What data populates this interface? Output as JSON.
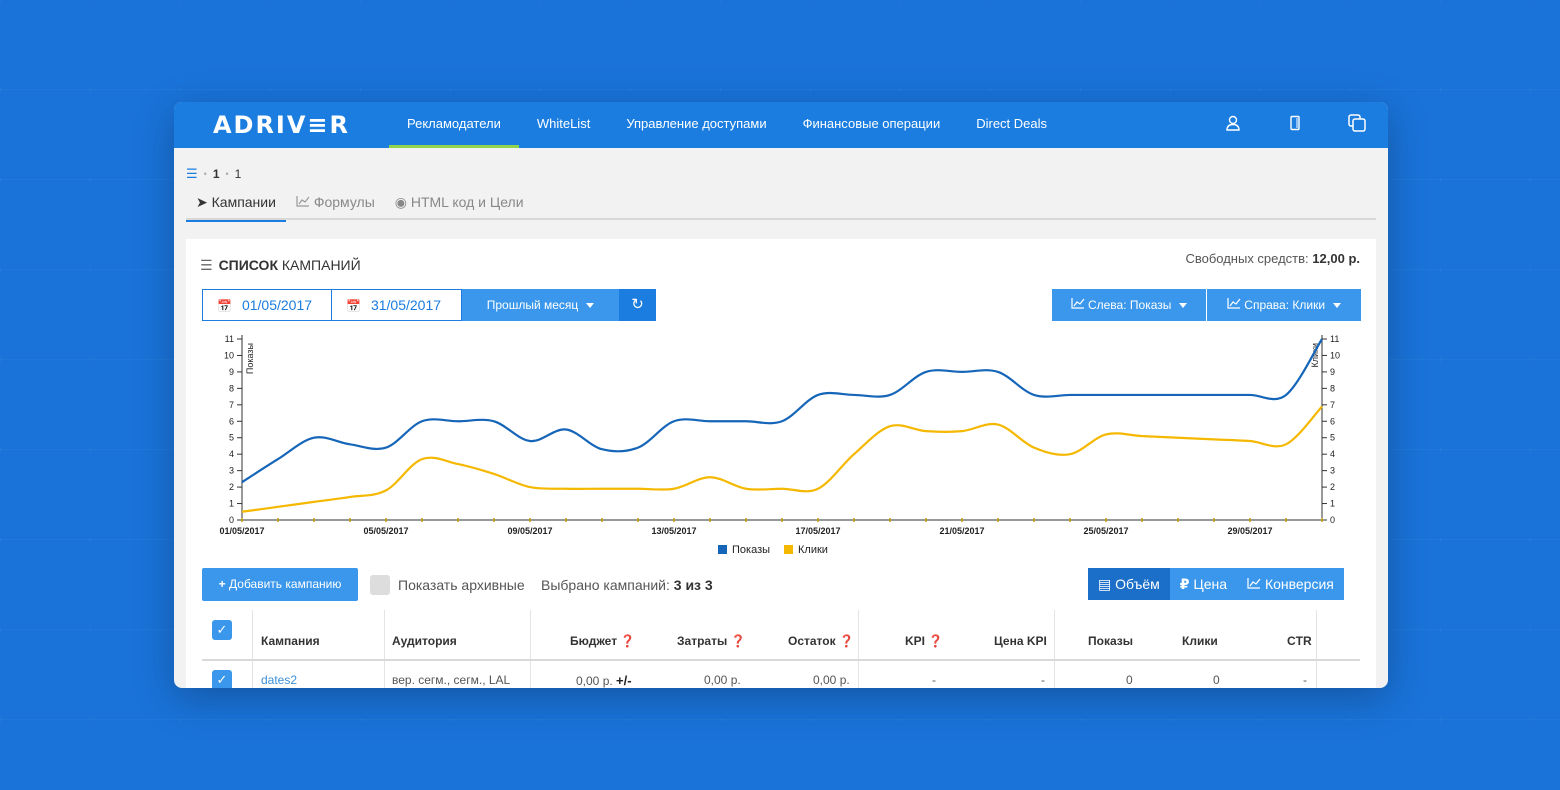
{
  "app": {
    "logo": "ADRIV≡R"
  },
  "nav": {
    "items": [
      "Рекламодатели",
      "WhiteList",
      "Управление доступами",
      "Финансовые операции",
      "Direct Deals"
    ],
    "active": 0,
    "icons": [
      "user-icon",
      "tablet-icon",
      "copy-icon"
    ]
  },
  "breadcrumb": {
    "items": [
      "1",
      "1"
    ]
  },
  "tabs": [
    {
      "label": "Кампании",
      "icon": "location-arrow-icon"
    },
    {
      "label": "Формулы",
      "icon": "line-chart-icon"
    },
    {
      "label": "HTML код и Цели",
      "icon": "globe-icon"
    }
  ],
  "panel": {
    "title_bold": "СПИСОК",
    "title_rest": "КАМПАНИЙ",
    "funds_label": "Свободных средств:",
    "funds_value": "12,00 р."
  },
  "filters": {
    "date_from": "01/05/2017",
    "date_to": "31/05/2017",
    "period": "Прошлый месяц",
    "left_axis": "Слева: Показы",
    "right_axis": "Справа: Клики"
  },
  "colors": {
    "primary": "#1b7de0",
    "light": "#3a97ec",
    "shows": "#1565b8",
    "clicks": "#f5b800",
    "active_nav": "#8fd44a"
  },
  "chart_data": {
    "type": "line",
    "x": [
      "01/05/2017",
      "02/05/2017",
      "03/05/2017",
      "04/05/2017",
      "05/05/2017",
      "06/05/2017",
      "07/05/2017",
      "08/05/2017",
      "09/05/2017",
      "10/05/2017",
      "11/05/2017",
      "12/05/2017",
      "13/05/2017",
      "14/05/2017",
      "15/05/2017",
      "16/05/2017",
      "17/05/2017",
      "18/05/2017",
      "19/05/2017",
      "20/05/2017",
      "21/05/2017",
      "22/05/2017",
      "23/05/2017",
      "24/05/2017",
      "25/05/2017",
      "26/05/2017",
      "27/05/2017",
      "28/05/2017",
      "29/05/2017",
      "30/05/2017",
      "31/05/2017"
    ],
    "xticks": [
      "01/05/2017",
      "05/05/2017",
      "09/05/2017",
      "13/05/2017",
      "17/05/2017",
      "21/05/2017",
      "25/05/2017",
      "29/05/2017"
    ],
    "series": [
      {
        "name": "Показы",
        "axis": "left",
        "values": [
          2.3,
          3.7,
          5,
          4.6,
          4.4,
          6,
          6,
          6,
          4.8,
          5.5,
          4.3,
          4.4,
          6,
          6,
          6,
          6,
          7.6,
          7.6,
          7.6,
          9,
          9,
          9,
          7.6,
          7.6,
          7.6,
          7.6,
          7.6,
          7.6,
          7.6,
          7.6,
          11
        ]
      },
      {
        "name": "Клики",
        "axis": "right",
        "values": [
          0.5,
          0.8,
          1.1,
          1.4,
          1.8,
          3.7,
          3.4,
          2.8,
          2,
          1.9,
          1.9,
          1.9,
          1.9,
          2.6,
          1.9,
          1.9,
          1.9,
          4,
          5.7,
          5.4,
          5.4,
          5.8,
          4.4,
          4,
          5.2,
          5.1,
          5,
          4.9,
          4.8,
          4.6,
          6.9
        ]
      }
    ],
    "ylabel_left": "Показы",
    "ylabel_right": "Клики",
    "ylim": [
      0,
      11
    ],
    "yticks": [
      0,
      1,
      2,
      3,
      4,
      5,
      6,
      7,
      8,
      9,
      10,
      11
    ],
    "legend": "bottom-center"
  },
  "controls": {
    "add_button": "Добавить кампанию",
    "show_archived": "Показать архивные",
    "selected_label": "Выбрано кампаний:",
    "selected_value": "3 из 3",
    "views": [
      "Объём",
      "Цена",
      "Конверсия"
    ]
  },
  "table": {
    "headers": [
      "Кампания",
      "Аудитория",
      "Бюджет",
      "Затраты",
      "Остаток",
      "KPI",
      "Цена KPI",
      "Показы",
      "Клики",
      "CTR"
    ],
    "rows": [
      {
        "name": "dates2",
        "audience": "вер. сегм., сегм., LAL",
        "budget": "0,00 р.",
        "budget_action": "+/-",
        "spent": "0,00 р.",
        "rest": "0,00 р.",
        "kpi": "-",
        "kpi_price": "-",
        "shows": "0",
        "clicks": "0",
        "ctr": "-"
      }
    ]
  }
}
